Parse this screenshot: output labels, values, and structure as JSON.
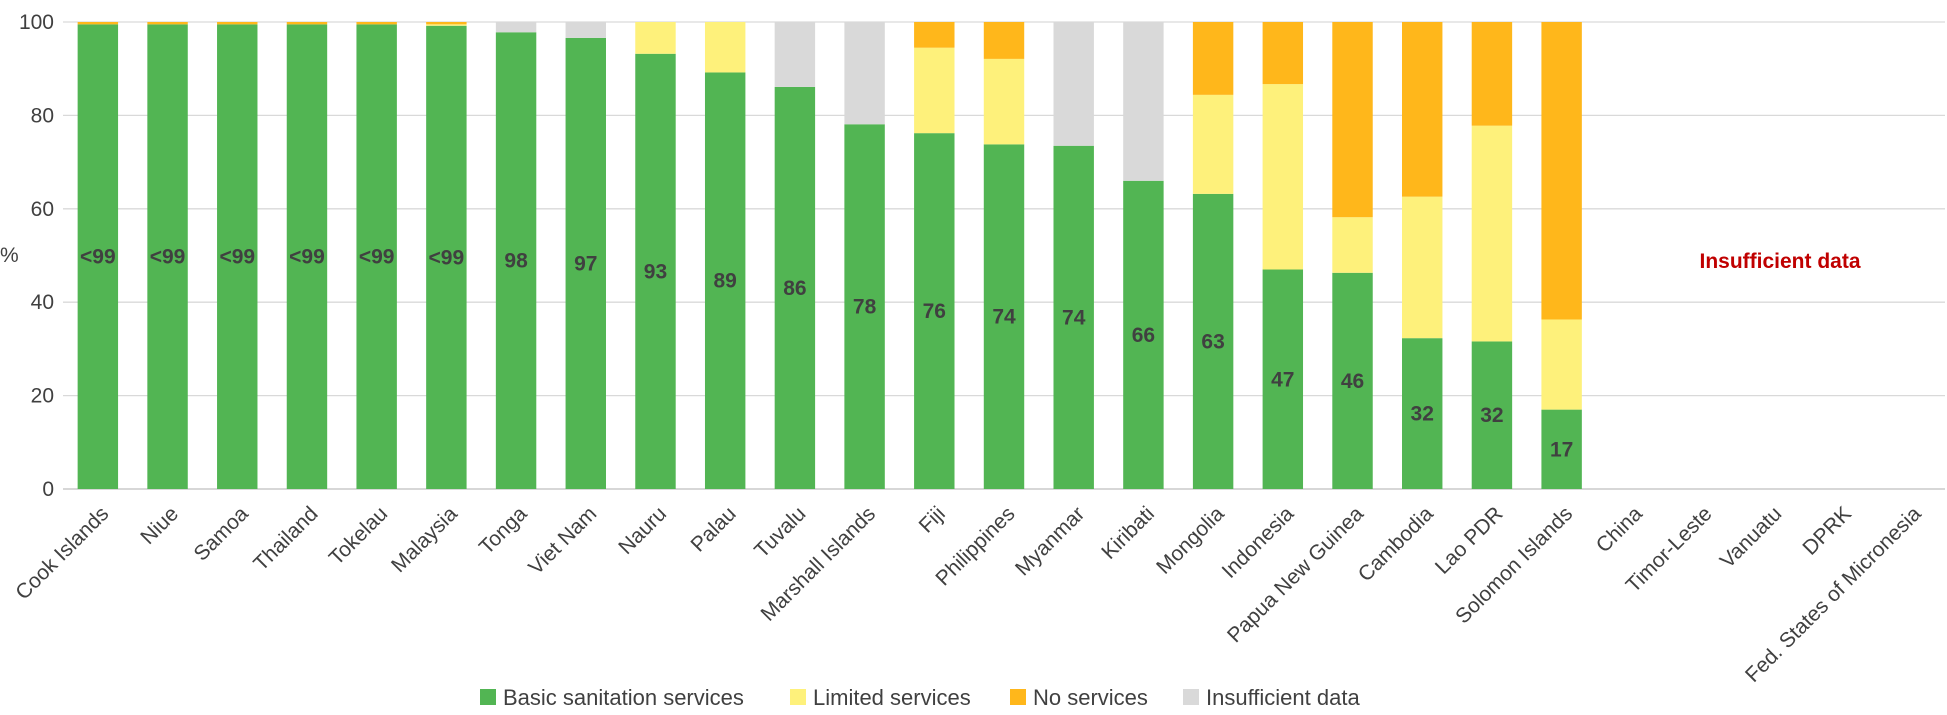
{
  "chart_data": {
    "type": "bar",
    "stacked": true,
    "ylabel": "%",
    "ylim": [
      0,
      100
    ],
    "yticks": [
      0,
      20,
      40,
      60,
      80,
      100
    ],
    "grid": true,
    "legend_position": "bottom",
    "categories": [
      "Cook Islands",
      "Niue",
      "Samoa",
      "Thailand",
      "Tokelau",
      "Malaysia",
      "Tonga",
      "Viet Nam",
      "Nauru",
      "Palau",
      "Tuvalu",
      "Marshall Islands",
      "Fiji",
      "Philippines",
      "Myanmar",
      "Kiribati",
      "Mongolia",
      "Indonesia",
      "Papua New Guinea",
      "Cambodia",
      "Lao PDR",
      "Solomon Islands",
      "China",
      "Timor-Leste",
      "Vanuatu",
      "DPRK",
      "Fed. States of Micronesia"
    ],
    "series": [
      {
        "name": "Basic sanitation services",
        "color": "#52b553",
        "values": [
          99.5,
          99.5,
          99.5,
          99.5,
          99.5,
          99.2,
          97.8,
          96.6,
          93.2,
          89.2,
          86.1,
          78.1,
          76.2,
          73.8,
          73.5,
          66.0,
          63.2,
          47.0,
          46.3,
          32.3,
          31.6,
          17.0,
          null,
          null,
          null,
          null,
          null
        ]
      },
      {
        "name": "Limited services",
        "color": "#fef17b",
        "values": [
          0,
          0,
          0,
          0,
          0,
          0.3,
          0,
          0,
          6.8,
          10.8,
          0,
          0,
          18.3,
          18.3,
          0,
          0,
          21.2,
          39.7,
          11.9,
          30.3,
          46.2,
          19.3,
          null,
          null,
          null,
          null,
          null
        ]
      },
      {
        "name": "No services",
        "color": "#ffb71b",
        "values": [
          0.5,
          0.5,
          0.5,
          0.5,
          0.5,
          0.5,
          0,
          0,
          0,
          0,
          0,
          0,
          5.5,
          7.9,
          0,
          0,
          15.6,
          13.3,
          41.8,
          37.4,
          22.2,
          63.7,
          null,
          null,
          null,
          null,
          null
        ]
      },
      {
        "name": "Insufficient data",
        "color": "#d9d9d9",
        "values": [
          0,
          0,
          0,
          0,
          0,
          0,
          2.2,
          3.4,
          0,
          0,
          13.9,
          21.9,
          0,
          0,
          26.5,
          34.0,
          0,
          0,
          0,
          0,
          0,
          0,
          null,
          null,
          null,
          null,
          null
        ]
      }
    ],
    "data_labels": [
      "<99",
      "<99",
      "<99",
      "<99",
      "<99",
      "<99",
      "98",
      "97",
      "93",
      "89",
      "86",
      "78",
      "76",
      "74",
      "74",
      "66",
      "63",
      "47",
      "46",
      "32",
      "32",
      "17",
      "",
      "",
      "",
      "",
      ""
    ],
    "annotation": {
      "text": "Insufficient data",
      "color": "#c00000"
    }
  }
}
